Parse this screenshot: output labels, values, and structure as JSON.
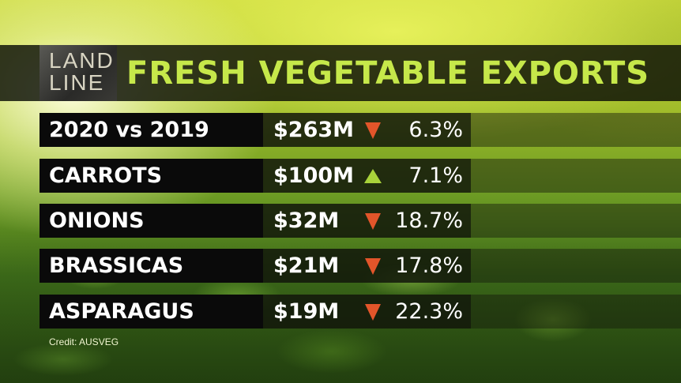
{
  "header": {
    "logo_line1": "LAND",
    "logo_line2": "LINE",
    "title": "FRESH VEGETABLE EXPORTS"
  },
  "rows": [
    {
      "label": "2020 vs 2019",
      "value": "$263M",
      "direction": "down",
      "change": "6.3%"
    },
    {
      "label": "CARROTS",
      "value": "$100M",
      "direction": "up",
      "change": "7.1%"
    },
    {
      "label": "ONIONS",
      "value": "$32M",
      "direction": "down",
      "change": "18.7%"
    },
    {
      "label": "BRASSICAS",
      "value": "$21M",
      "direction": "down",
      "change": "17.8%"
    },
    {
      "label": "ASPARAGUS",
      "value": "$19M",
      "direction": "down",
      "change": "22.3%"
    }
  ],
  "credit": "Credit: AUSVEG",
  "colors": {
    "title": "#c6e84a",
    "down_arrow": "#e2552a",
    "up_arrow": "#a8d23a"
  }
}
